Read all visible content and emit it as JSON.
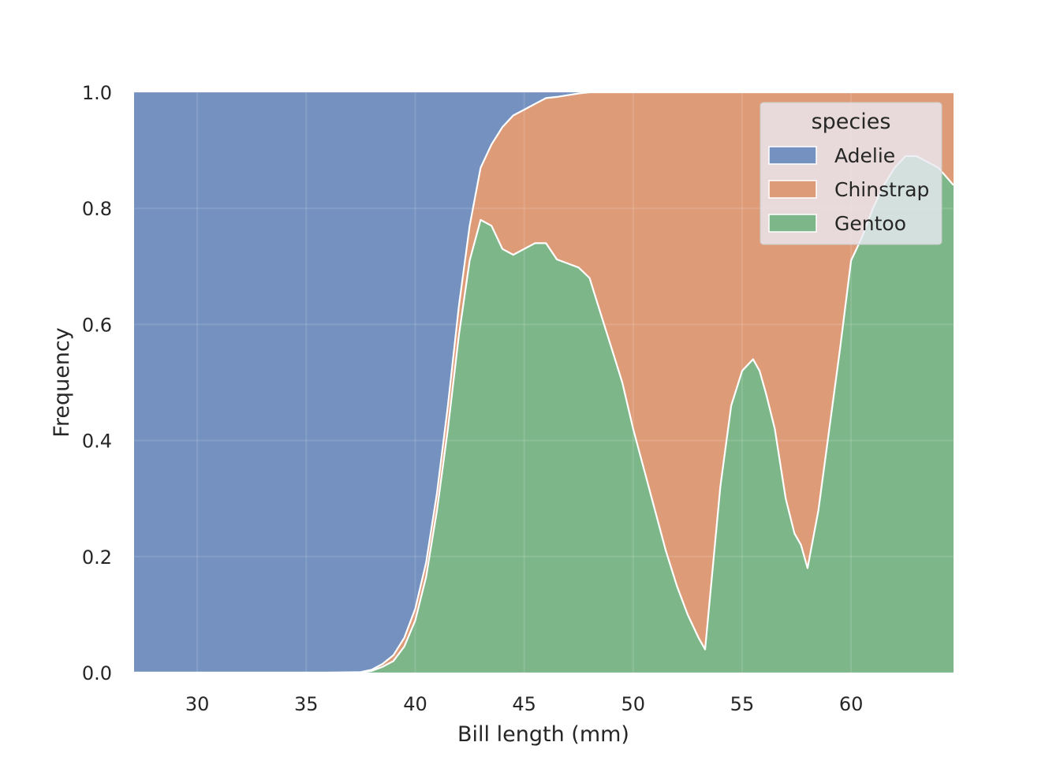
{
  "chart_data": {
    "type": "area",
    "stacked": true,
    "normalized": true,
    "title": "",
    "xlabel": "Bill length (mm)",
    "ylabel": "Frequency",
    "xlim": [
      27.1,
      64.7
    ],
    "ylim": [
      0,
      1
    ],
    "xticks": [
      30,
      35,
      40,
      45,
      50,
      55,
      60
    ],
    "yticks": [
      0.0,
      0.2,
      0.4,
      0.6,
      0.8,
      1.0
    ],
    "ytick_labels": [
      "0.0",
      "0.2",
      "0.4",
      "0.6",
      "0.8",
      "1.0"
    ],
    "grid": true,
    "legend": {
      "title": "species",
      "placement": "top-right"
    },
    "x": [
      27.1,
      36.0,
      37.5,
      38.0,
      38.5,
      39.0,
      39.5,
      40.0,
      40.5,
      41.0,
      41.5,
      42.0,
      42.5,
      43.0,
      43.5,
      44.0,
      44.5,
      45.0,
      45.5,
      46.0,
      46.5,
      47.0,
      47.5,
      48.0,
      48.5,
      49.0,
      49.5,
      50.0,
      50.5,
      51.0,
      51.5,
      52.0,
      52.5,
      53.0,
      53.3,
      53.6,
      54.0,
      54.5,
      55.0,
      55.5,
      55.8,
      56.1,
      56.5,
      57.0,
      57.4,
      57.7,
      58.0,
      58.5,
      59.0,
      59.5,
      60.0,
      60.5,
      61.0,
      61.5,
      62.0,
      62.5,
      63.0,
      63.5,
      64.0,
      64.7
    ],
    "series": [
      {
        "name": "Adelie",
        "color": "#7491c0",
        "values": [
          1.0,
          1.0,
          0.999,
          0.995,
          0.985,
          0.97,
          0.94,
          0.89,
          0.81,
          0.69,
          0.54,
          0.37,
          0.23,
          0.13,
          0.09,
          0.06,
          0.04,
          0.03,
          0.02,
          0.01,
          0.008,
          0.005,
          0.002,
          0.0,
          0.0,
          0.0,
          0.0,
          0.0,
          0.0,
          0.0,
          0.0,
          0.0,
          0.0,
          0.0,
          0.0,
          0.0,
          0.0,
          0.0,
          0.0,
          0.0,
          0.0,
          0.0,
          0.0,
          0.0,
          0.0,
          0.0,
          0.0,
          0.0,
          0.0,
          0.0,
          0.0,
          0.0,
          0.0,
          0.0,
          0.0,
          0.0,
          0.0,
          0.0,
          0.0,
          0.0
        ]
      },
      {
        "name": "Chinstrap",
        "color": "#de9b78",
        "values": [
          0.0,
          0.0,
          0.001,
          0.002,
          0.005,
          0.01,
          0.015,
          0.02,
          0.025,
          0.03,
          0.04,
          0.05,
          0.06,
          0.09,
          0.14,
          0.21,
          0.24,
          0.24,
          0.24,
          0.25,
          0.28,
          0.29,
          0.3,
          0.32,
          0.38,
          0.44,
          0.5,
          0.58,
          0.65,
          0.72,
          0.79,
          0.85,
          0.9,
          0.94,
          0.96,
          0.84,
          0.68,
          0.54,
          0.48,
          0.46,
          0.48,
          0.52,
          0.58,
          0.7,
          0.76,
          0.78,
          0.82,
          0.72,
          0.58,
          0.44,
          0.29,
          0.25,
          0.2,
          0.16,
          0.13,
          0.11,
          0.11,
          0.12,
          0.13,
          0.16
        ]
      },
      {
        "name": "Gentoo",
        "color": "#7db789",
        "values": [
          0.0,
          0.0,
          0.0,
          0.003,
          0.01,
          0.02,
          0.045,
          0.09,
          0.165,
          0.28,
          0.42,
          0.58,
          0.71,
          0.78,
          0.77,
          0.73,
          0.72,
          0.73,
          0.74,
          0.74,
          0.712,
          0.705,
          0.698,
          0.68,
          0.62,
          0.56,
          0.5,
          0.42,
          0.35,
          0.28,
          0.21,
          0.15,
          0.1,
          0.06,
          0.04,
          0.16,
          0.32,
          0.46,
          0.52,
          0.54,
          0.52,
          0.48,
          0.42,
          0.3,
          0.24,
          0.22,
          0.18,
          0.28,
          0.42,
          0.56,
          0.71,
          0.75,
          0.8,
          0.84,
          0.87,
          0.89,
          0.89,
          0.88,
          0.87,
          0.84
        ]
      }
    ]
  }
}
